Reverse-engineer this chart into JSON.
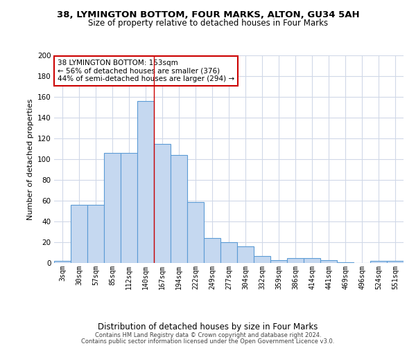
{
  "title_line1": "38, LYMINGTON BOTTOM, FOUR MARKS, ALTON, GU34 5AH",
  "title_line2": "Size of property relative to detached houses in Four Marks",
  "xlabel": "Distribution of detached houses by size in Four Marks",
  "ylabel": "Number of detached properties",
  "categories": [
    "3sqm",
    "30sqm",
    "57sqm",
    "85sqm",
    "112sqm",
    "140sqm",
    "167sqm",
    "194sqm",
    "222sqm",
    "249sqm",
    "277sqm",
    "304sqm",
    "332sqm",
    "359sqm",
    "386sqm",
    "414sqm",
    "441sqm",
    "469sqm",
    "496sqm",
    "524sqm",
    "551sqm"
  ],
  "values": [
    2,
    56,
    56,
    106,
    106,
    156,
    115,
    104,
    59,
    24,
    20,
    16,
    7,
    3,
    5,
    5,
    3,
    1,
    0,
    2,
    2
  ],
  "bar_color": "#c5d8f0",
  "bar_edge_color": "#5b9bd5",
  "background_color": "#ffffff",
  "grid_color": "#d0d8e8",
  "annotation_text": "38 LYMINGTON BOTTOM: 153sqm\n← 56% of detached houses are smaller (376)\n44% of semi-detached houses are larger (294) →",
  "vline_position": 5.5,
  "vline_color": "#cc0000",
  "ylim": [
    0,
    200
  ],
  "yticks": [
    0,
    20,
    40,
    60,
    80,
    100,
    120,
    140,
    160,
    180,
    200
  ],
  "footer_line1": "Contains HM Land Registry data © Crown copyright and database right 2024.",
  "footer_line2": "Contains public sector information licensed under the Open Government Licence v3.0."
}
